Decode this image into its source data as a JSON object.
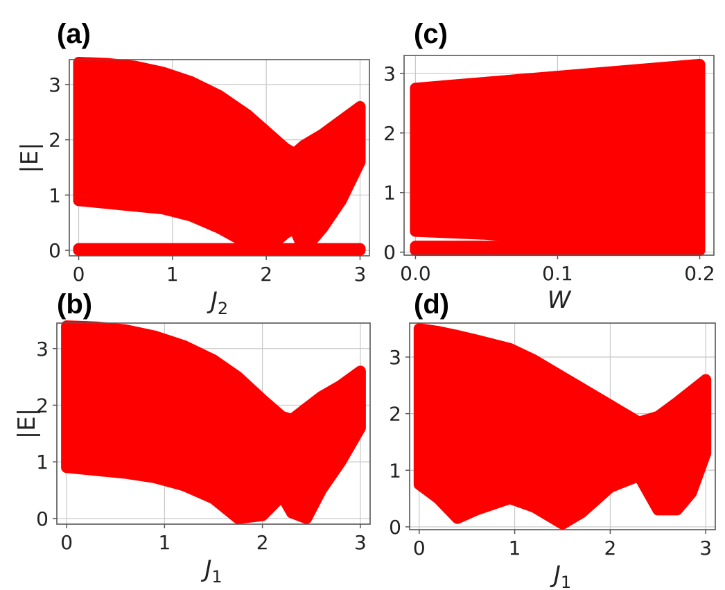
{
  "colors": {
    "band": "#ff0000",
    "grid": "#c8c8c8",
    "frame": "#555555"
  },
  "chart_data": [
    {
      "id": "a",
      "type": "scatter",
      "panel_label": "(a)",
      "xlabel_var": "J",
      "xlabel_sub": "2",
      "ylabel": "|E|",
      "xlim": [
        -0.1,
        3.1
      ],
      "ylim": [
        -0.1,
        3.45
      ],
      "xticks": [
        0,
        1,
        2,
        3
      ],
      "xtick_labels": [
        "0",
        "1",
        "2",
        "3"
      ],
      "yticks": [
        0,
        1,
        2,
        3
      ],
      "ytick_labels": [
        "0",
        "1",
        "2",
        "3"
      ],
      "grid": true,
      "series": [
        {
          "x": [
            0,
            0.3,
            0.6,
            0.9,
            1.2,
            1.5,
            1.8,
            2.0,
            2.2,
            2.3,
            2.4,
            2.6,
            2.8,
            3.0
          ],
          "upper": [
            3.4,
            3.38,
            3.33,
            3.22,
            3.05,
            2.8,
            2.45,
            2.15,
            1.85,
            1.75,
            1.9,
            2.1,
            2.35,
            2.6
          ],
          "lower": [
            0.9,
            0.85,
            0.8,
            0.75,
            0.62,
            0.4,
            0.12,
            0.0,
            0.3,
            0.4,
            0.0,
            0.4,
            0.9,
            1.6
          ]
        },
        {
          "x": [
            0,
            0.5,
            1.0,
            1.5,
            2.0,
            2.5,
            3.0
          ],
          "upper": [
            0.03,
            0.03,
            0.03,
            0.03,
            0.03,
            0.03,
            0.03
          ],
          "lower": [
            0.0,
            0.0,
            0.0,
            0.0,
            0.0,
            0.0,
            0.0
          ]
        }
      ]
    },
    {
      "id": "c",
      "type": "scatter",
      "panel_label": "(c)",
      "xlabel_var": "W",
      "xlabel_sub": "",
      "ylabel": "",
      "xlim": [
        -0.008,
        0.21
      ],
      "ylim": [
        -0.05,
        3.3
      ],
      "xticks": [
        0.0,
        0.1,
        0.2
      ],
      "xtick_labels": [
        "0.0",
        "0.1",
        "0.2"
      ],
      "yticks": [
        0,
        1,
        2,
        3
      ],
      "ytick_labels": [
        "0",
        "1",
        "2",
        "3"
      ],
      "grid": true,
      "series": [
        {
          "x": [
            0.0,
            0.05,
            0.1,
            0.15,
            0.2
          ],
          "upper": [
            2.75,
            2.85,
            2.95,
            3.05,
            3.15
          ],
          "lower": [
            0.35,
            0.3,
            0.2,
            0.12,
            0.03
          ]
        },
        {
          "x": [
            0.0,
            0.05,
            0.1,
            0.15,
            0.2
          ],
          "upper": [
            0.1,
            0.1,
            0.1,
            0.1,
            0.1
          ],
          "lower": [
            0.03,
            0.03,
            0.03,
            0.03,
            0.03
          ]
        }
      ]
    },
    {
      "id": "b",
      "type": "scatter",
      "panel_label": "(b)",
      "xlabel_var": "J",
      "xlabel_sub": "1",
      "ylabel": "|E|",
      "xlim": [
        -0.1,
        3.1
      ],
      "ylim": [
        -0.1,
        3.45
      ],
      "xticks": [
        0,
        1,
        2,
        3
      ],
      "xtick_labels": [
        "0",
        "1",
        "2",
        "3"
      ],
      "yticks": [
        0,
        1,
        2,
        3
      ],
      "ytick_labels": [
        "0",
        "1",
        "2",
        "3"
      ],
      "grid": true,
      "series": [
        {
          "x": [
            0,
            0.3,
            0.6,
            0.9,
            1.2,
            1.5,
            1.75,
            2.0,
            2.2,
            2.3,
            2.45,
            2.6,
            2.8,
            3.0
          ],
          "upper": [
            3.4,
            3.38,
            3.33,
            3.22,
            3.05,
            2.8,
            2.5,
            2.1,
            1.8,
            1.75,
            1.95,
            2.15,
            2.35,
            2.6
          ],
          "lower": [
            0.9,
            0.85,
            0.8,
            0.72,
            0.58,
            0.35,
            0.0,
            0.05,
            0.4,
            0.1,
            0.0,
            0.5,
            1.0,
            1.6
          ]
        }
      ]
    },
    {
      "id": "d",
      "type": "scatter",
      "panel_label": "(d)",
      "xlabel_var": "J",
      "xlabel_sub": "1",
      "ylabel": "",
      "xlim": [
        -0.1,
        3.1
      ],
      "ylim": [
        -0.05,
        3.6
      ],
      "xticks": [
        0,
        1,
        2,
        3
      ],
      "xtick_labels": [
        "0",
        "1",
        "2",
        "3"
      ],
      "yticks": [
        0,
        1,
        2,
        3
      ],
      "ytick_labels": [
        "0",
        "1",
        "2",
        "3"
      ],
      "grid": true,
      "series": [
        {
          "x": [
            0,
            0.2,
            0.4,
            0.6,
            0.95,
            1.2,
            1.5,
            1.7,
            2.0,
            2.3,
            2.5,
            2.7,
            2.85,
            3.0
          ],
          "upper": [
            3.5,
            3.45,
            3.38,
            3.3,
            3.15,
            2.95,
            2.65,
            2.45,
            2.15,
            1.85,
            1.95,
            2.2,
            2.4,
            2.6
          ],
          "lower": [
            0.75,
            0.5,
            0.15,
            0.3,
            0.5,
            0.35,
            0.05,
            0.25,
            0.7,
            0.9,
            0.3,
            0.3,
            0.6,
            1.3
          ]
        }
      ]
    }
  ]
}
